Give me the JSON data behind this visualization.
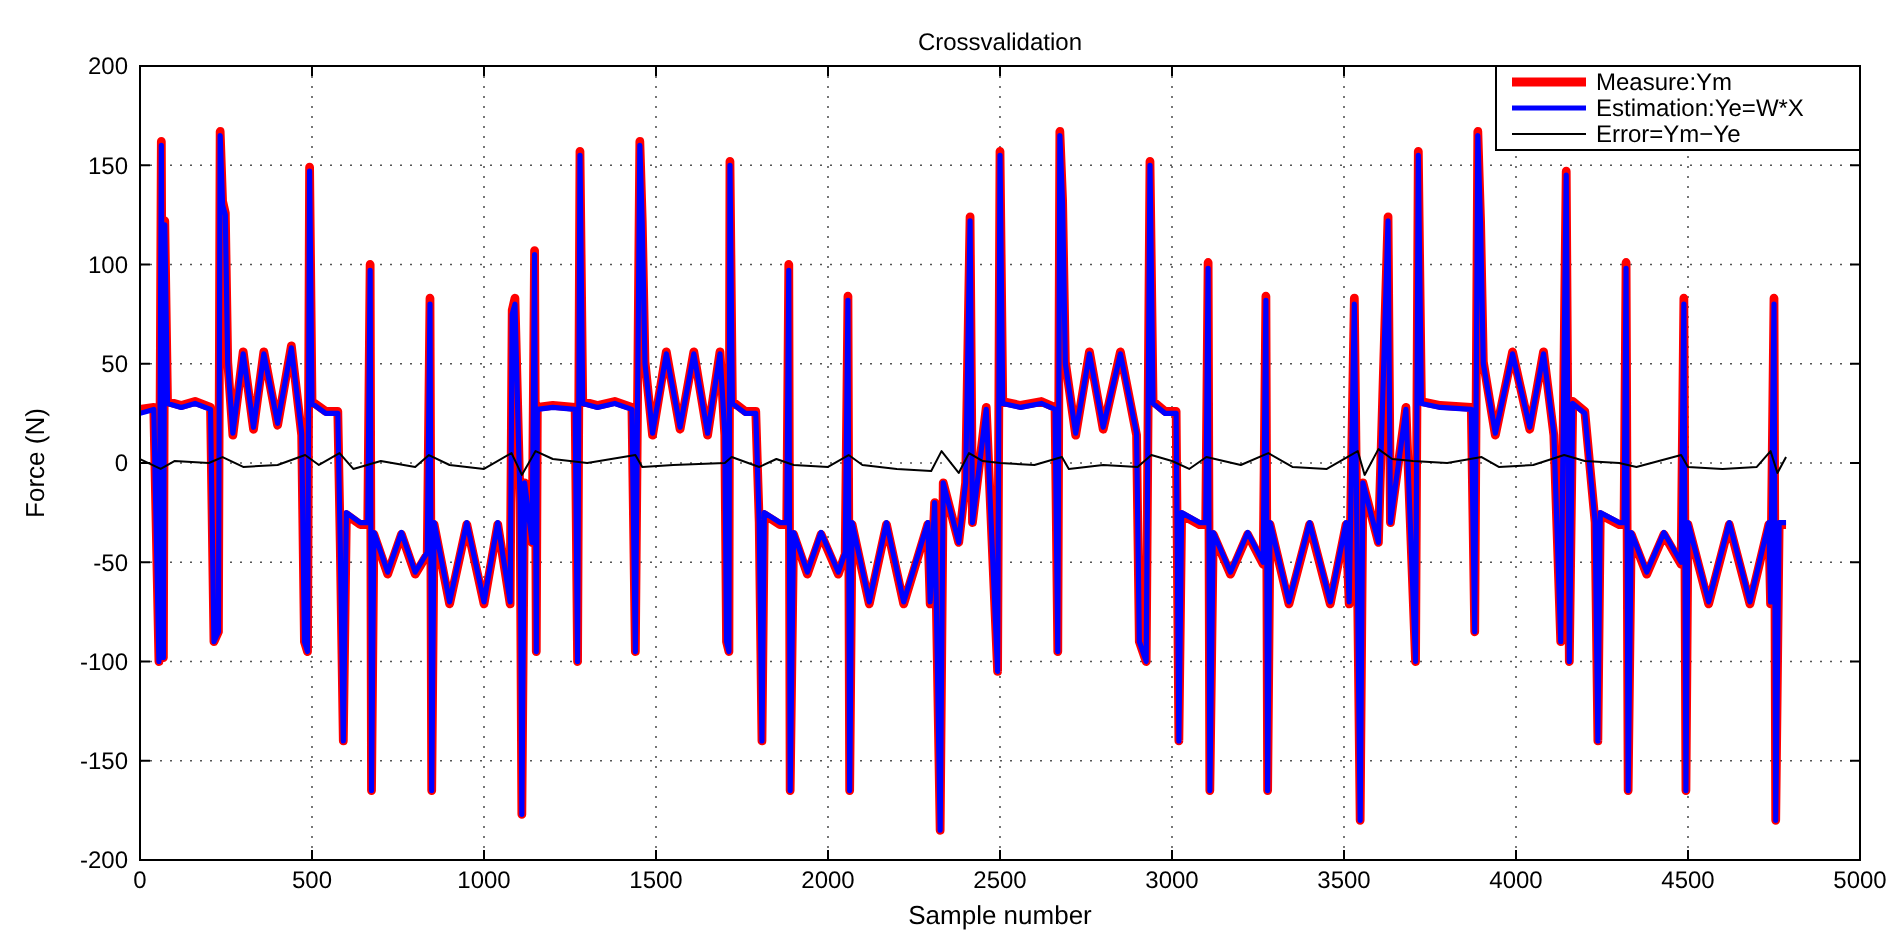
{
  "chart_data": {
    "type": "line",
    "title": "Crossvalidation",
    "xlabel": "Sample number",
    "ylabel": "Force (N)",
    "xlim": [
      0,
      5000
    ],
    "xticks": [
      0,
      500,
      1000,
      1500,
      2000,
      2500,
      3000,
      3500,
      4000,
      4500,
      5000
    ],
    "ylim": [
      -200,
      200
    ],
    "yticks": [
      -200,
      -150,
      -100,
      -50,
      0,
      50,
      100,
      150,
      200
    ],
    "grid": true,
    "legend": "top right",
    "line_style": "solid",
    "marker": "none",
    "x": [
      0,
      40,
      55,
      62,
      68,
      72,
      80,
      120,
      160,
      205,
      215,
      228,
      233,
      240,
      248,
      255,
      270,
      300,
      330,
      360,
      400,
      440,
      470,
      478,
      487,
      493,
      500,
      540,
      575,
      582,
      591,
      600,
      640,
      662,
      669,
      673,
      680,
      720,
      760,
      800,
      835,
      843,
      848,
      855,
      900,
      950,
      1000,
      1040,
      1076,
      1082,
      1090,
      1105,
      1110,
      1118,
      1140,
      1147,
      1152,
      1155,
      1200,
      1265,
      1272,
      1279,
      1287,
      1330,
      1380,
      1430,
      1440,
      1453,
      1460,
      1468,
      1490,
      1530,
      1570,
      1610,
      1650,
      1686,
      1700,
      1705,
      1712,
      1715,
      1722,
      1760,
      1790,
      1800,
      1808,
      1815,
      1860,
      1880,
      1886,
      1890,
      1900,
      1940,
      1980,
      2030,
      2050,
      2058,
      2063,
      2070,
      2120,
      2170,
      2220,
      2290,
      2297,
      2310,
      2326,
      2335,
      2380,
      2400,
      2413,
      2420,
      2460,
      2493,
      2500,
      2508,
      2560,
      2620,
      2660,
      2668,
      2674,
      2682,
      2690,
      2720,
      2760,
      2800,
      2850,
      2897,
      2905,
      2925,
      2936,
      2945,
      2980,
      3012,
      3020,
      3028,
      3080,
      3098,
      3105,
      3110,
      3120,
      3170,
      3220,
      3265,
      3273,
      3278,
      3285,
      3340,
      3400,
      3460,
      3506,
      3515,
      3530,
      3547,
      3555,
      3600,
      3628,
      3635,
      3680,
      3708,
      3716,
      3725,
      3780,
      3870,
      3880,
      3889,
      3897,
      3905,
      3940,
      3990,
      4040,
      4080,
      4110,
      4130,
      4146,
      4155,
      4165,
      4200,
      4230,
      4238,
      4245,
      4300,
      4314,
      4320,
      4326,
      4335,
      4380,
      4430,
      4480,
      4488,
      4494,
      4500,
      4560,
      4620,
      4680,
      4735,
      4740,
      4750,
      4755,
      4765,
      4785
    ],
    "series": [
      {
        "name": "Measure:Ym",
        "color": "#ff0000",
        "values": [
          27,
          28,
          -100,
          162,
          -98,
          122,
          31,
          29,
          31,
          28,
          -90,
          -85,
          167,
          132,
          126,
          51,
          14,
          56,
          17,
          56,
          19,
          59,
          14,
          -90,
          -95,
          149,
          31,
          26,
          26,
          -40,
          -140,
          -26,
          -31,
          -31,
          100,
          -165,
          -36,
          -56,
          -36,
          -56,
          -46,
          83,
          -165,
          -31,
          -71,
          -31,
          -71,
          -31,
          -71,
          77,
          83,
          -20,
          -177,
          -10,
          -40,
          107,
          -95,
          28,
          29,
          28,
          -100,
          157,
          31,
          29,
          31,
          28,
          -95,
          162,
          122,
          51,
          14,
          56,
          17,
          56,
          14,
          56,
          14,
          -90,
          -95,
          152,
          31,
          26,
          26,
          -30,
          -140,
          -26,
          -31,
          -31,
          100,
          -165,
          -36,
          -56,
          -36,
          -56,
          -46,
          84,
          -165,
          -31,
          -71,
          -31,
          -71,
          -31,
          -71,
          -20,
          -185,
          -10,
          -40,
          -10,
          124,
          -30,
          28,
          -105,
          157,
          31,
          29,
          31,
          28,
          -95,
          167,
          132,
          51,
          14,
          56,
          17,
          56,
          14,
          -90,
          -100,
          152,
          31,
          26,
          26,
          -140,
          -26,
          -31,
          -31,
          101,
          -165,
          -36,
          -56,
          -36,
          -51,
          84,
          -165,
          -31,
          -71,
          -31,
          -71,
          -31,
          -71,
          83,
          -180,
          -10,
          -40,
          124,
          -30,
          28,
          -100,
          157,
          31,
          29,
          28,
          -85,
          167,
          122,
          51,
          14,
          56,
          17,
          56,
          14,
          -90,
          147,
          -100,
          31,
          26,
          -30,
          -140,
          -26,
          -31,
          -31,
          101,
          -165,
          -36,
          -56,
          -36,
          -51,
          83,
          -165,
          -31,
          -71,
          -31,
          -71,
          -31,
          -71,
          83,
          -180,
          -31,
          -31
        ]
      },
      {
        "name": "Estimation:Ye=W*X",
        "color": "#0000ff",
        "values": [
          25,
          27,
          -100,
          160,
          -98,
          120,
          30,
          28,
          30,
          27,
          -90,
          -85,
          165,
          130,
          125,
          50,
          15,
          55,
          18,
          55,
          20,
          58,
          15,
          -90,
          -95,
          147,
          30,
          25,
          25,
          -40,
          -140,
          -25,
          -30,
          -30,
          97,
          -165,
          -35,
          -55,
          -35,
          -55,
          -45,
          80,
          -165,
          -30,
          -70,
          -30,
          -70,
          -30,
          -70,
          75,
          80,
          -20,
          -177,
          -10,
          -40,
          105,
          -95,
          27,
          28,
          27,
          -100,
          155,
          30,
          28,
          30,
          27,
          -95,
          160,
          120,
          50,
          15,
          55,
          18,
          55,
          15,
          55,
          15,
          -90,
          -95,
          150,
          30,
          25,
          25,
          -30,
          -140,
          -25,
          -30,
          -30,
          97,
          -165,
          -35,
          -55,
          -35,
          -55,
          -45,
          82,
          -165,
          -30,
          -70,
          -30,
          -70,
          -30,
          -70,
          -20,
          -185,
          -10,
          -40,
          -10,
          122,
          -30,
          27,
          -105,
          155,
          30,
          28,
          30,
          27,
          -95,
          165,
          130,
          50,
          15,
          55,
          18,
          55,
          15,
          -90,
          -100,
          150,
          30,
          25,
          25,
          -140,
          -25,
          -30,
          -30,
          98,
          -165,
          -35,
          -55,
          -35,
          -50,
          82,
          -165,
          -30,
          -70,
          -30,
          -70,
          -30,
          -70,
          80,
          -180,
          -10,
          -40,
          122,
          -30,
          27,
          -100,
          155,
          30,
          28,
          27,
          -85,
          165,
          120,
          50,
          15,
          55,
          18,
          55,
          15,
          -90,
          145,
          -100,
          30,
          25,
          -30,
          -140,
          -25,
          -30,
          -30,
          98,
          -165,
          -35,
          -55,
          -35,
          -50,
          80,
          -165,
          -30,
          -70,
          -30,
          -70,
          -30,
          -70,
          80,
          -180,
          -30,
          -30
        ]
      },
      {
        "name": "Error=Ym−Ye",
        "color": "#000000",
        "x": [
          0,
          60,
          100,
          200,
          240,
          300,
          400,
          480,
          520,
          580,
          620,
          700,
          800,
          840,
          900,
          1000,
          1080,
          1110,
          1150,
          1200,
          1300,
          1440,
          1460,
          1550,
          1700,
          1720,
          1800,
          1850,
          1900,
          2000,
          2060,
          2100,
          2200,
          2300,
          2330,
          2380,
          2410,
          2450,
          2500,
          2600,
          2680,
          2700,
          2800,
          2900,
          2940,
          3000,
          3050,
          3100,
          3200,
          3280,
          3350,
          3450,
          3540,
          3560,
          3600,
          3640,
          3700,
          3800,
          3900,
          3950,
          4050,
          4140,
          4200,
          4300,
          4350,
          4480,
          4500,
          4600,
          4700,
          4740,
          4760,
          4785
        ],
        "values": [
          2,
          -3,
          1,
          0,
          3,
          -2,
          -1,
          4,
          -1,
          5,
          -3,
          1,
          -2,
          4,
          -1,
          -3,
          5,
          -6,
          6,
          2,
          0,
          4,
          -2,
          -1,
          0,
          3,
          -2,
          2,
          -1,
          -2,
          4,
          -1,
          -3,
          -4,
          6,
          -5,
          5,
          1,
          0,
          -1,
          3,
          -3,
          -1,
          -2,
          4,
          1,
          -3,
          3,
          -1,
          5,
          -2,
          -3,
          6,
          -6,
          7,
          2,
          1,
          0,
          3,
          -2,
          -1,
          4,
          1,
          0,
          -2,
          4,
          -2,
          -3,
          -2,
          6,
          -5,
          3
        ]
      }
    ]
  }
}
